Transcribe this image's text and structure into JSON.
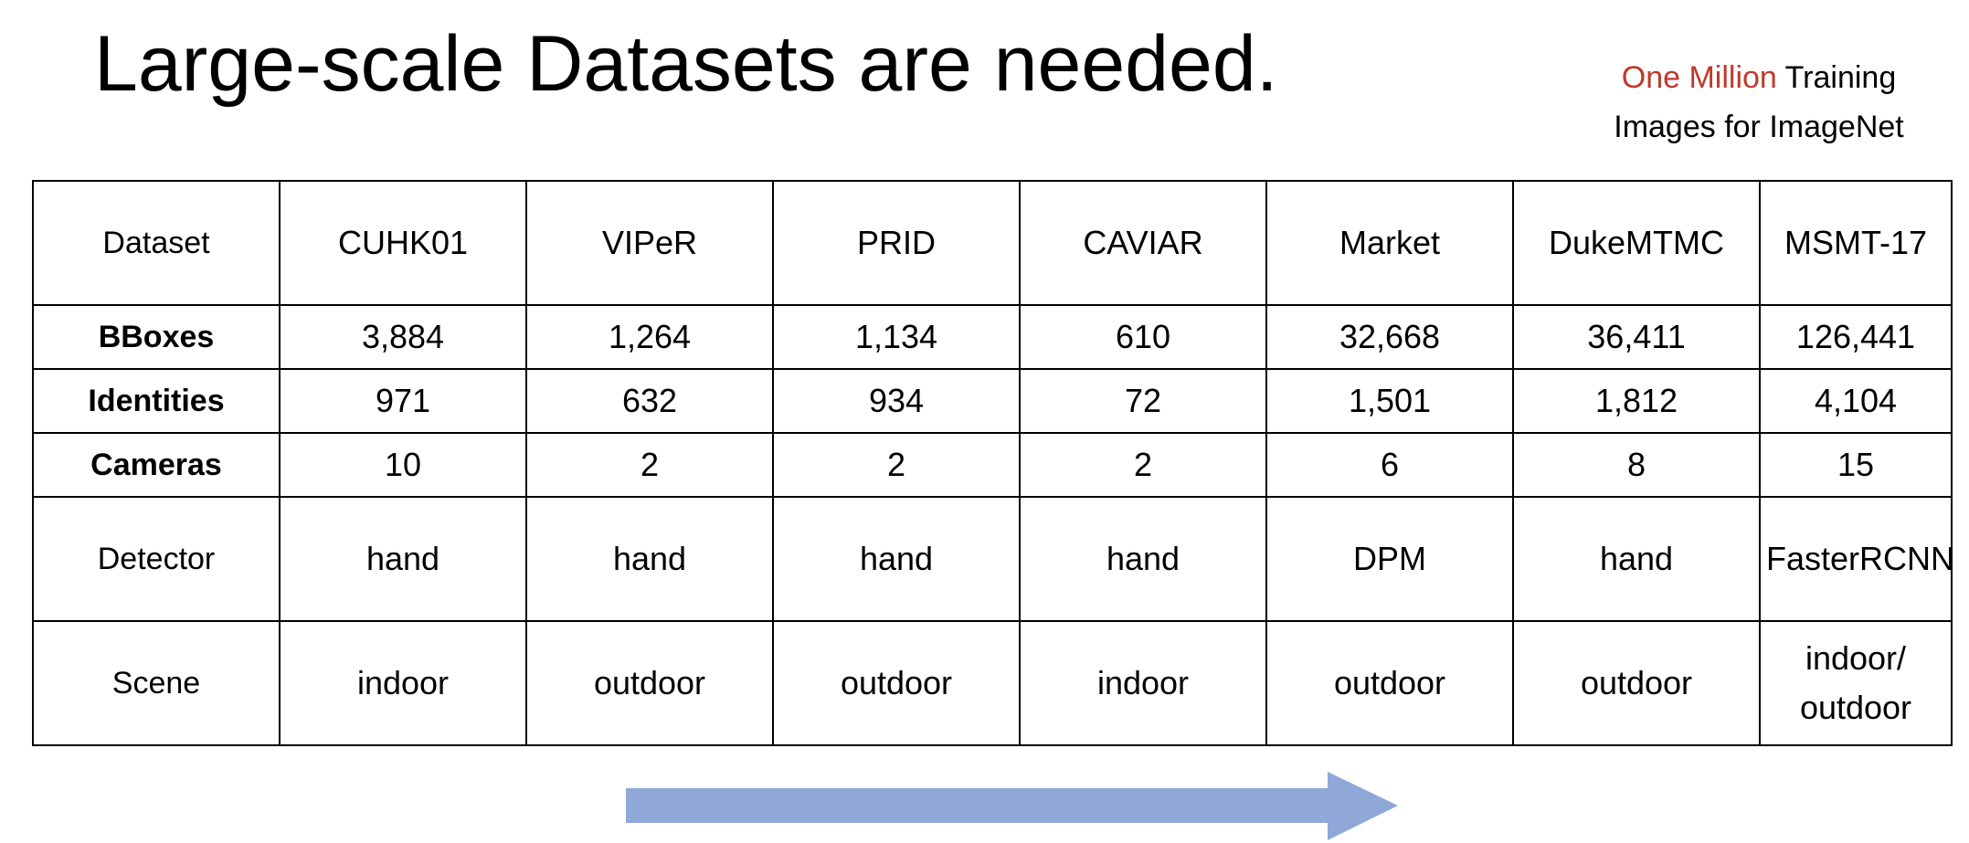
{
  "slide": {
    "title": "Large-scale Datasets are needed.",
    "note": {
      "accent": "One Million",
      "rest_line1": " Training",
      "line2": "Images for ImageNet"
    }
  },
  "table": {
    "header": {
      "label": "Dataset",
      "columns": [
        "CUHK01",
        "VIPeR",
        "PRID",
        "CAVIAR",
        "Market",
        "DukeMTMC",
        "MSMT-17"
      ]
    },
    "rows": [
      {
        "label": "BBoxes",
        "bold": true,
        "values": [
          "3,884",
          "1,264",
          "1,134",
          "610",
          "32,668",
          "36,411",
          "126,441"
        ]
      },
      {
        "label": "Identities",
        "bold": true,
        "values": [
          "971",
          "632",
          "934",
          "72",
          "1,501",
          "1,812",
          "4,104"
        ]
      },
      {
        "label": "Cameras",
        "bold": true,
        "values": [
          "10",
          "2",
          "2",
          "2",
          "6",
          "8",
          "15"
        ]
      },
      {
        "label": "Detector",
        "bold": false,
        "values": [
          "hand",
          "hand",
          "hand",
          "hand",
          "DPM",
          "hand",
          "FasterRCNN"
        ]
      },
      {
        "label": "Scene",
        "bold": false,
        "values": [
          "indoor",
          "outdoor",
          "outdoor",
          "indoor",
          "outdoor",
          "outdoor",
          "indoor/ outdoor"
        ]
      }
    ]
  },
  "colors": {
    "arrow": "#90a8d8",
    "accent": "#c0392b"
  }
}
